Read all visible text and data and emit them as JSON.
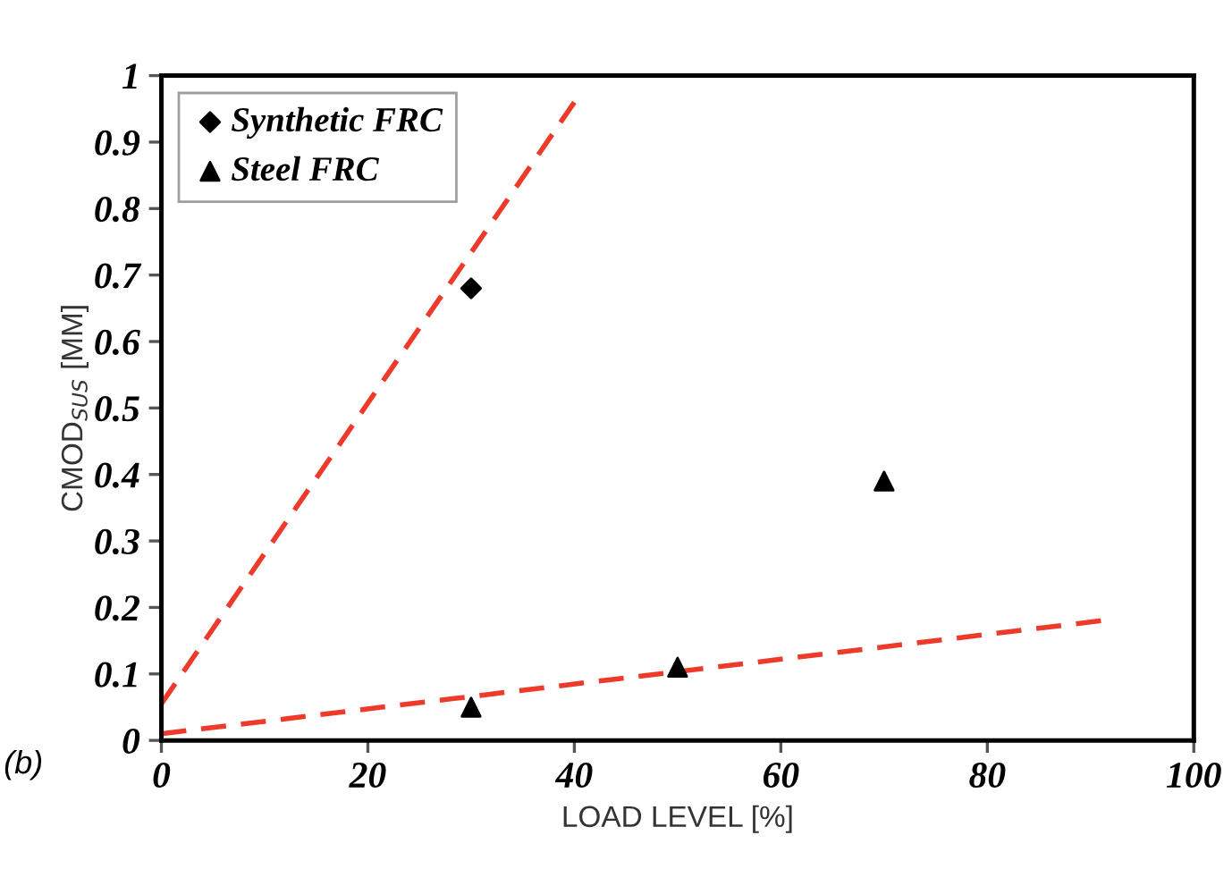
{
  "chart_data": {
    "type": "scatter",
    "xlabel": "LOAD LEVEL [%]",
    "ylabel": "CMOD$_{SUS}$ [MM]",
    "annotations": [
      "(b)"
    ],
    "xlim": [
      0,
      100
    ],
    "ylim": [
      0,
      1
    ],
    "xticks": [
      0,
      20,
      40,
      60,
      80,
      100
    ],
    "yticks": [
      0,
      0.1,
      0.2,
      0.3,
      0.4,
      0.5,
      0.6,
      0.7,
      0.8,
      0.9,
      1
    ],
    "grid": false,
    "legend": "top left",
    "series": [
      {
        "name": "Synthetic FRC",
        "color": "#000000",
        "marker": "diamond",
        "x": [
          30
        ],
        "values": [
          0.68
        ]
      },
      {
        "name": "Steel FRC",
        "color": "#000000",
        "marker": "triangle",
        "x": [
          30,
          50,
          70
        ],
        "values": [
          0.05,
          0.11,
          0.39
        ]
      },
      {
        "type": "line",
        "color": "#ee3a2a",
        "line_style": "dashed",
        "marker": "none",
        "x": [
          0,
          40
        ],
        "values": [
          0.055,
          0.96
        ]
      },
      {
        "type": "line",
        "color": "#ee3a2a",
        "line_style": "dashed",
        "marker": "none",
        "x": [
          0,
          91
        ],
        "values": [
          0.01,
          0.18
        ]
      }
    ]
  }
}
